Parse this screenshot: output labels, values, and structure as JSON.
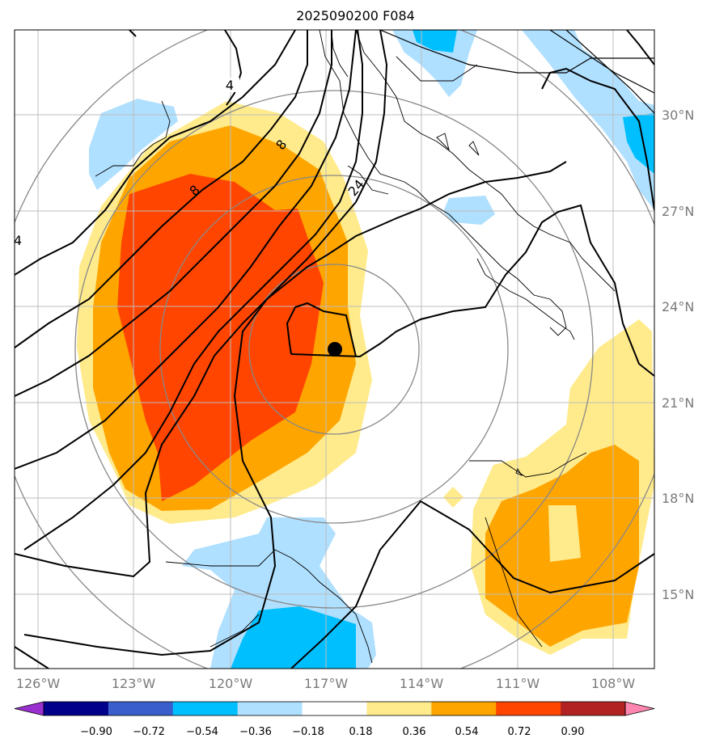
{
  "title": "2025090200 F084",
  "axes": {
    "lon_labels": [
      "126°W",
      "123°W",
      "120°W",
      "117°W",
      "114°W",
      "111°W",
      "108°W"
    ],
    "lat_labels": [
      "30°N",
      "27°N",
      "24°N",
      "21°N",
      "18°N",
      "15°N"
    ]
  },
  "contour_labels": [
    "4",
    "8",
    "8",
    "24",
    "4"
  ],
  "colorbar": {
    "ticks": [
      "−0.90",
      "−0.72",
      "−0.54",
      "−0.36",
      "−0.18",
      "0.18",
      "0.36",
      "0.54",
      "0.72",
      "0.90"
    ],
    "colors": [
      "#9b30d0",
      "#00008b",
      "#3a5fcd",
      "#00bfff",
      "#b0e0ff",
      "#ffffff",
      "#ffeb8c",
      "#ffa500",
      "#ff4500",
      "#b22222",
      "#ff86b0"
    ]
  },
  "shading_colors": {
    "light_yellow": "#ffeb8c",
    "orange": "#ffa500",
    "red_orange": "#ff4500",
    "light_blue": "#b0e0ff",
    "blue": "#00bfff"
  },
  "marker": "center-dot"
}
